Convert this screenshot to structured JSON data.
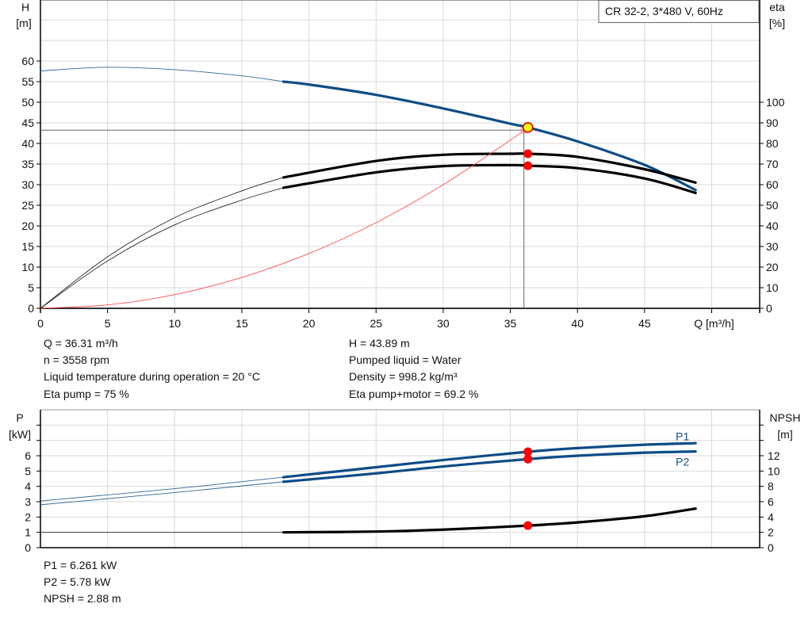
{
  "chart_data": [
    {
      "type": "line",
      "title": "CR 32-2, 3*480 V, 60Hz",
      "xlabel": "Q [m³/h]",
      "ylabel_left": [
        "H",
        "[m]"
      ],
      "ylabel_right": [
        "eta",
        "[%]"
      ],
      "xlim": [
        0,
        53.6
      ],
      "ylim_left": [
        0,
        75
      ],
      "ylim_right": [
        0,
        100
      ],
      "x_ticks": [
        "0",
        "5",
        "10",
        "15",
        "20",
        "25",
        "30",
        "35",
        "40",
        "45"
      ],
      "y_ticks_left": [
        "0",
        "5",
        "10",
        "15",
        "20",
        "25",
        "30",
        "35",
        "40",
        "45",
        "50",
        "55",
        "60"
      ],
      "y_ticks_right": [
        "0",
        "10",
        "20",
        "30",
        "40",
        "50",
        "60",
        "70",
        "80",
        "90",
        "100"
      ],
      "grid": true,
      "series": [
        {
          "axis": "left",
          "color": "#0e4c86",
          "thick_from": 18.1,
          "x": [
            0,
            5,
            10,
            15,
            18.1,
            20,
            25,
            30,
            35,
            36.31,
            40,
            45,
            48.8
          ],
          "y": [
            57.6,
            58.5,
            57.9,
            56.4,
            55,
            54.3,
            51.8,
            48.5,
            44.8,
            43.89,
            40.5,
            34.8,
            28.7
          ]
        },
        {
          "axis": "right",
          "color": "#000000",
          "thick_from": 18.1,
          "x": [
            0,
            5,
            10,
            15,
            18.1,
            25,
            30,
            35,
            36.31,
            40,
            45,
            48.8
          ],
          "y": [
            0,
            25,
            44,
            57,
            63.5,
            71.5,
            74.5,
            75,
            75,
            73.5,
            67.5,
            61
          ]
        },
        {
          "axis": "right",
          "color": "#000000",
          "thick_from": 18.1,
          "x": [
            0,
            5,
            10,
            15,
            18.1,
            25,
            30,
            35,
            36.31,
            40,
            45,
            48.8
          ],
          "y": [
            0,
            23,
            40.5,
            52.5,
            58.5,
            66,
            69,
            69.5,
            69.2,
            68,
            63,
            56
          ]
        },
        {
          "axis": "left",
          "color": "#ff5050",
          "thin": true,
          "x": [
            0,
            5,
            10,
            15,
            20,
            25,
            30,
            35,
            36.31
          ],
          "y": [
            0,
            0.83,
            3.33,
            7.49,
            13.3,
            20.8,
            30.0,
            40.8,
            43.89
          ]
        }
      ],
      "duty_point": {
        "Q": 36.31,
        "H": 43.89,
        "eta_pump": 75,
        "eta_total": 69.2
      }
    },
    {
      "type": "line",
      "xlim": [
        0,
        53.6
      ],
      "ylabel_left": [
        "P",
        "[kW]"
      ],
      "ylabel_right": [
        "NPSH",
        "[m]"
      ],
      "ylim_left": [
        0,
        9
      ],
      "ylim_right": [
        0,
        18
      ],
      "y_ticks_left": [
        "0",
        "1",
        "2",
        "3",
        "4",
        "5",
        "6"
      ],
      "y_ticks_right": [
        "0",
        "2",
        "4",
        "6",
        "8",
        "10",
        "12"
      ],
      "grid": true,
      "series": [
        {
          "name": "P1",
          "axis": "left",
          "color": "#0e4c86",
          "thick_from": 18.1,
          "x": [
            0,
            10,
            18.1,
            25,
            30,
            36.31,
            40,
            45,
            48.8
          ],
          "y": [
            3.05,
            3.85,
            4.6,
            5.25,
            5.72,
            6.261,
            6.5,
            6.72,
            6.82
          ]
        },
        {
          "name": "P2",
          "axis": "left",
          "color": "#0e4c86",
          "thick_from": 18.1,
          "x": [
            0,
            10,
            18.1,
            25,
            30,
            36.31,
            40,
            45,
            48.8
          ],
          "y": [
            2.8,
            3.6,
            4.3,
            4.85,
            5.3,
            5.78,
            6.0,
            6.2,
            6.28
          ]
        },
        {
          "axis": "right",
          "color": "#000000",
          "thick_from": 18.1,
          "x": [
            0,
            10,
            18.1,
            25,
            30,
            36.31,
            40,
            45,
            48.8
          ],
          "y": [
            2.0,
            2.0,
            2.0,
            2.1,
            2.35,
            2.88,
            3.3,
            4.1,
            5.1
          ]
        }
      ],
      "duty_point": {
        "Q": 36.31,
        "P1": 6.261,
        "P2": 5.78,
        "NPSH": 2.88
      }
    }
  ],
  "info_top_left": [
    "Q = 36.31 m³/h",
    "n = 3558 rpm",
    "Liquid temperature during operation = 20 °C",
    "Eta pump = 75 %"
  ],
  "info_top_right": [
    "H = 43.89 m",
    "Pumped liquid = Water",
    "Density = 998.2 kg/m³",
    "Eta pump+motor = 69.2 %"
  ],
  "info_bottom": [
    "P1 = 6.261 kW",
    "P2 = 5.78 kW",
    "NPSH = 2.88 m"
  ]
}
